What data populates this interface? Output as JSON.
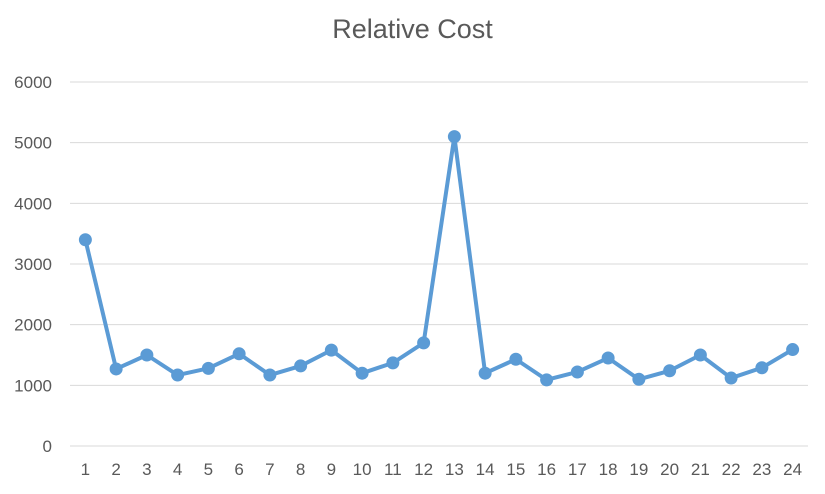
{
  "chart_data": {
    "type": "line",
    "title": "Relative Cost",
    "xlabel": "",
    "ylabel": "",
    "categories": [
      "1",
      "2",
      "3",
      "4",
      "5",
      "6",
      "7",
      "8",
      "9",
      "10",
      "11",
      "12",
      "13",
      "14",
      "15",
      "16",
      "17",
      "18",
      "19",
      "20",
      "21",
      "22",
      "23",
      "24"
    ],
    "series": [
      {
        "values": [
          3400,
          1270,
          1500,
          1170,
          1280,
          1520,
          1170,
          1320,
          1580,
          1200,
          1370,
          1700,
          5100,
          1200,
          1430,
          1090,
          1220,
          1450,
          1100,
          1240,
          1500,
          1120,
          1290,
          1590
        ]
      }
    ],
    "ylim": [
      0,
      6000
    ],
    "yticks": [
      "0",
      "1000",
      "2000",
      "3000",
      "4000",
      "5000",
      "6000"
    ],
    "grid": true,
    "legend": "none",
    "colors": {
      "series": "#5B9BD5",
      "grid": "#D9D9D9",
      "text": "#595959"
    }
  }
}
